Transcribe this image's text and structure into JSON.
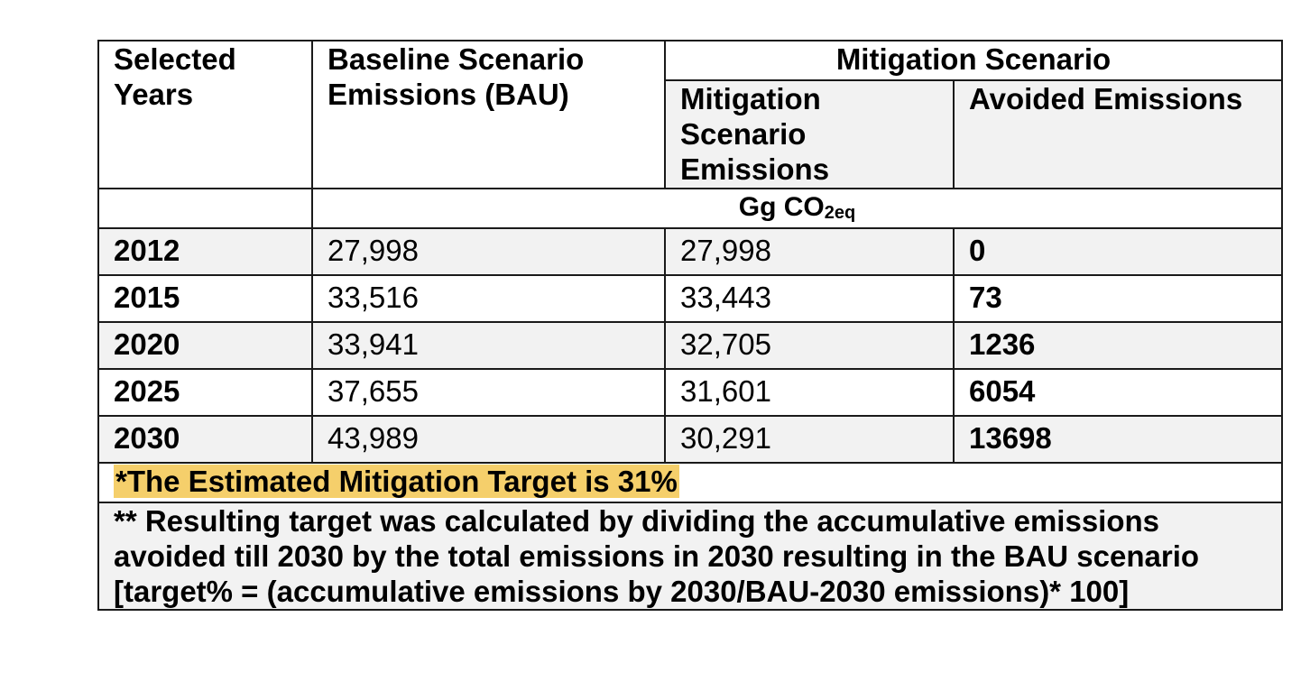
{
  "header": {
    "selected_years": "Selected Years",
    "baseline": "Baseline Scenario Emissions (BAU)",
    "mitigation_group": "Mitigation Scenario",
    "mitigation_emissions": "Mitigation Scenario Emissions",
    "avoided_emissions": "Avoided Emissions"
  },
  "unit": {
    "main": "Gg CO",
    "subscript": "2eq"
  },
  "rows": [
    {
      "year": "2012",
      "baseline": "27,998",
      "mitigation": "27,998",
      "avoided": "0"
    },
    {
      "year": "2015",
      "baseline": "33,516",
      "mitigation": "33,443",
      "avoided": "73"
    },
    {
      "year": "2020",
      "baseline": "33,941",
      "mitigation": "32,705",
      "avoided": "1236"
    },
    {
      "year": "2025",
      "baseline": "37,655",
      "mitigation": "31,601",
      "avoided": "6054"
    },
    {
      "year": "2030",
      "baseline": "43,989",
      "mitigation": "30,291",
      "avoided": "13698"
    }
  ],
  "notes": {
    "target": "*The Estimated Mitigation Target is 31%",
    "explanation": "** Resulting target was calculated by dividing the accumulative emissions avoided till 2030 by the total emissions in 2030 resulting in the BAU scenario [target% = (accumulative emissions by 2030/BAU-2030 emissions)* 100]"
  },
  "colors": {
    "highlight": "#f5cf6b",
    "gray_fill": "#f2f2f2",
    "border": "#1a1a1a"
  }
}
